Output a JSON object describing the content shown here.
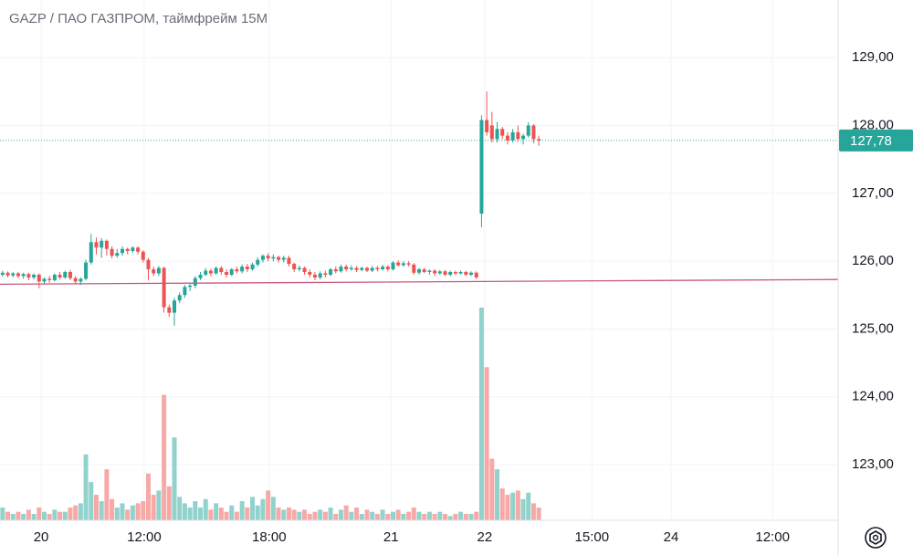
{
  "chart_data": {
    "type": "candlestick",
    "title": "GAZP / ПАО ГАЗПРОМ, таймфрейм 15М",
    "up_color": "#26a69a",
    "down_color": "#ef5350",
    "volume_up_color": "#92d2cc",
    "volume_down_color": "#f7a9a7",
    "open": [
      125.8,
      125.83,
      125.79,
      125.82,
      125.78,
      125.81,
      125.76,
      125.8,
      125.7,
      125.74,
      125.72,
      125.8,
      125.76,
      125.84,
      125.75,
      125.7,
      125.74,
      125.98,
      126.28,
      126.2,
      126.3,
      126.18,
      126.08,
      126.12,
      126.18,
      126.15,
      126.2,
      126.14,
      126.02,
      125.88,
      125.82,
      125.9,
      125.32,
      125.24,
      125.42,
      125.5,
      125.62,
      125.64,
      125.75,
      125.8,
      125.86,
      125.82,
      125.9,
      125.84,
      125.8,
      125.88,
      125.85,
      125.92,
      125.88,
      125.95,
      126.02,
      126.08,
      126.04,
      126.06,
      126.02,
      126.05,
      125.96,
      125.88,
      125.9,
      125.84,
      125.8,
      125.76,
      125.82,
      125.8,
      125.88,
      125.85,
      125.92,
      125.88,
      125.9,
      125.87,
      125.9,
      125.86,
      125.9,
      125.88,
      125.92,
      125.88,
      125.98,
      125.94,
      125.97,
      125.95,
      125.83,
      125.88,
      125.84,
      125.86,
      125.82,
      125.85,
      125.8,
      125.84,
      125.82,
      125.84,
      125.8,
      125.83,
      126.7,
      128.08,
      128.0,
      127.8,
      127.95,
      127.85,
      127.78,
      127.9,
      127.8,
      127.85,
      128.0,
      127.8
    ],
    "high": [
      125.86,
      125.85,
      125.84,
      125.84,
      125.83,
      125.83,
      125.82,
      125.82,
      125.76,
      125.78,
      125.82,
      125.84,
      125.86,
      125.87,
      125.78,
      125.76,
      126.02,
      126.4,
      126.35,
      126.34,
      126.32,
      126.22,
      126.18,
      126.22,
      126.2,
      126.22,
      126.22,
      126.16,
      126.05,
      125.92,
      125.93,
      125.92,
      125.36,
      125.46,
      125.54,
      125.65,
      125.68,
      125.78,
      125.84,
      125.9,
      125.89,
      125.92,
      125.93,
      125.88,
      125.9,
      125.92,
      125.95,
      125.96,
      125.98,
      126.06,
      126.1,
      126.12,
      126.1,
      126.08,
      126.08,
      126.08,
      125.98,
      125.94,
      125.92,
      125.88,
      125.84,
      125.85,
      125.86,
      125.9,
      125.92,
      125.95,
      125.95,
      125.94,
      125.93,
      125.92,
      125.92,
      125.93,
      125.93,
      125.95,
      125.94,
      126.0,
      126.01,
      126.0,
      126.0,
      125.97,
      125.9,
      125.9,
      125.88,
      125.88,
      125.87,
      125.87,
      125.86,
      125.86,
      125.86,
      125.86,
      125.85,
      125.85,
      128.15,
      128.5,
      128.2,
      128.05,
      127.98,
      127.9,
      127.95,
      128.0,
      127.88,
      128.05,
      128.02,
      127.85
    ],
    "low": [
      125.77,
      125.76,
      125.76,
      125.75,
      125.74,
      125.72,
      125.73,
      125.6,
      125.66,
      125.68,
      125.7,
      125.73,
      125.74,
      125.72,
      125.66,
      125.65,
      125.72,
      125.95,
      126.1,
      126.05,
      126.08,
      126.04,
      126.05,
      126.08,
      126.1,
      126.12,
      126.1,
      125.98,
      125.72,
      125.78,
      125.78,
      125.24,
      125.18,
      125.05,
      125.38,
      125.46,
      125.56,
      125.6,
      125.72,
      125.78,
      125.78,
      125.8,
      125.8,
      125.76,
      125.78,
      125.82,
      125.82,
      125.84,
      125.86,
      125.92,
      125.98,
      126.0,
      126.0,
      125.98,
      125.98,
      125.92,
      125.84,
      125.85,
      125.8,
      125.76,
      125.72,
      125.73,
      125.76,
      125.78,
      125.82,
      125.83,
      125.85,
      125.86,
      125.84,
      125.85,
      125.84,
      125.84,
      125.85,
      125.86,
      125.85,
      125.86,
      125.92,
      125.92,
      125.92,
      125.8,
      125.8,
      125.82,
      125.8,
      125.78,
      125.8,
      125.78,
      125.78,
      125.8,
      125.8,
      125.78,
      125.78,
      125.74,
      126.5,
      127.85,
      127.75,
      127.75,
      127.8,
      127.72,
      127.75,
      127.76,
      127.72,
      127.82,
      127.74,
      127.7
    ],
    "close": [
      125.83,
      125.79,
      125.82,
      125.78,
      125.81,
      125.76,
      125.8,
      125.7,
      125.74,
      125.72,
      125.8,
      125.76,
      125.84,
      125.75,
      125.7,
      125.74,
      125.98,
      126.28,
      126.2,
      126.3,
      126.18,
      126.08,
      126.12,
      126.18,
      126.15,
      126.2,
      126.14,
      126.02,
      125.88,
      125.82,
      125.9,
      125.32,
      125.24,
      125.42,
      125.5,
      125.62,
      125.64,
      125.75,
      125.8,
      125.86,
      125.82,
      125.9,
      125.84,
      125.8,
      125.88,
      125.85,
      125.92,
      125.88,
      125.95,
      126.02,
      126.08,
      126.04,
      126.06,
      126.02,
      126.05,
      125.96,
      125.88,
      125.9,
      125.84,
      125.8,
      125.76,
      125.82,
      125.8,
      125.88,
      125.85,
      125.92,
      125.88,
      125.9,
      125.87,
      125.9,
      125.86,
      125.9,
      125.88,
      125.92,
      125.88,
      125.98,
      125.94,
      125.97,
      125.95,
      125.83,
      125.88,
      125.84,
      125.86,
      125.82,
      125.85,
      125.8,
      125.84,
      125.82,
      125.84,
      125.8,
      125.83,
      125.76,
      128.08,
      127.9,
      127.8,
      127.95,
      127.85,
      127.78,
      127.9,
      127.8,
      127.85,
      128.0,
      127.8,
      127.78
    ],
    "volume": [
      6,
      4,
      3,
      4,
      3,
      5,
      3,
      6,
      4,
      3,
      5,
      4,
      4,
      6,
      7,
      8,
      31,
      18,
      12,
      9,
      24,
      10,
      6,
      8,
      5,
      7,
      8,
      9,
      22,
      12,
      14,
      59,
      16,
      39,
      11,
      8,
      6,
      9,
      6,
      10,
      5,
      8,
      6,
      4,
      7,
      4,
      9,
      6,
      11,
      7,
      10,
      14,
      11,
      6,
      5,
      6,
      5,
      4,
      5,
      3,
      4,
      5,
      4,
      6,
      3,
      5,
      7,
      4,
      6,
      3,
      5,
      4,
      3,
      5,
      3,
      4,
      5,
      3,
      4,
      6,
      4,
      3,
      4,
      3,
      4,
      3,
      2,
      3,
      4,
      3,
      3,
      4,
      100,
      72,
      29,
      24,
      15,
      12,
      13,
      14,
      10,
      13,
      8,
      6
    ],
    "xlim": [
      -0.5,
      160.5
    ],
    "xticks": [
      {
        "value": 7.4,
        "label": "20"
      },
      {
        "value": 27.2,
        "label": "12:00"
      },
      {
        "value": 51.2,
        "label": "18:00"
      },
      {
        "value": 74.6,
        "label": "21"
      },
      {
        "value": 92.6,
        "label": "22"
      },
      {
        "value": 113.2,
        "label": "15:00"
      },
      {
        "value": 128.4,
        "label": "24"
      },
      {
        "value": 147.9,
        "label": "12:00"
      }
    ],
    "ylim": [
      122.18,
      129.85
    ],
    "yticks": [
      {
        "value": 123,
        "label": "123,00"
      },
      {
        "value": 124,
        "label": "124,00"
      },
      {
        "value": 125,
        "label": "125,00"
      },
      {
        "value": 126,
        "label": "126,00"
      },
      {
        "value": 127,
        "label": "127,00"
      },
      {
        "value": 128,
        "label": "128,00"
      },
      {
        "value": 129,
        "label": "129,00"
      }
    ],
    "volume_ylim": [
      0,
      100
    ],
    "grid": true,
    "last_price": {
      "value": 127.78,
      "label": "127,78"
    },
    "trend_line": {
      "values": [
        125.66,
        125.73
      ],
      "color": "#c8587a"
    }
  }
}
